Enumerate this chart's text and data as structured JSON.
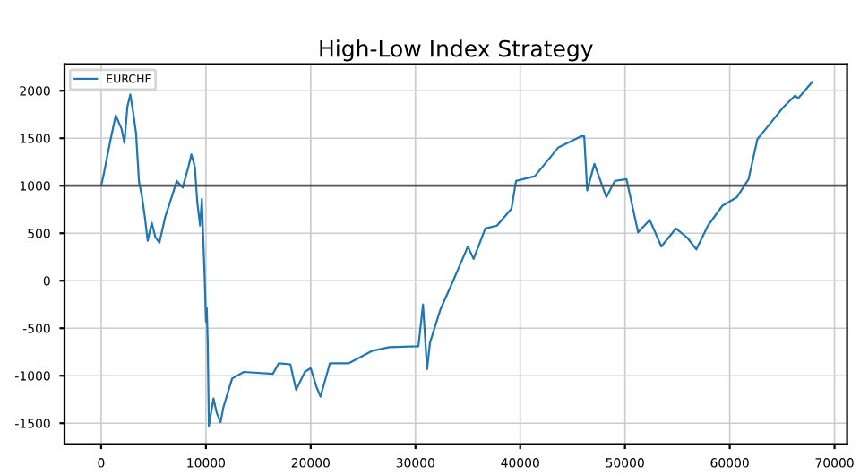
{
  "chart_data": {
    "type": "line",
    "title": "High-Low Index Strategy",
    "series": [
      {
        "name": "EURCHF",
        "color": "#1f77b4",
        "x": [
          0,
          280,
          830,
          1390,
          1940,
          2220,
          2500,
          2780,
          3060,
          3330,
          3610,
          3890,
          4170,
          4440,
          4830,
          5170,
          5560,
          6110,
          6670,
          7220,
          7780,
          8330,
          8610,
          8940,
          9170,
          9440,
          9610,
          9780,
          9890,
          10000,
          10080,
          10170,
          10280,
          10720,
          11030,
          11390,
          11670,
          12500,
          13610,
          16390,
          16940,
          18060,
          18610,
          19440,
          20000,
          20560,
          20940,
          21830,
          23610,
          25830,
          27500,
          30280,
          30720,
          31110,
          31390,
          32390,
          33600,
          35000,
          35550,
          36670,
          37780,
          39170,
          39600,
          41390,
          43610,
          45830,
          46110,
          46390,
          47080,
          48220,
          49030,
          50140,
          51250,
          52360,
          53470,
          54860,
          55970,
          56810,
          57920,
          59300,
          60690,
          61800,
          62640,
          63750,
          65140,
          66250,
          66530,
          67860
        ],
        "values": [
          1000,
          1140,
          1450,
          1740,
          1600,
          1450,
          1830,
          1960,
          1770,
          1550,
          1045,
          890,
          670,
          420,
          610,
          460,
          400,
          670,
          860,
          1050,
          980,
          1200,
          1330,
          1200,
          830,
          580,
          860,
          330,
          0,
          -430,
          -290,
          -650,
          -1530,
          -1240,
          -1390,
          -1490,
          -1330,
          -1030,
          -960,
          -980,
          -870,
          -880,
          -1150,
          -960,
          -920,
          -1120,
          -1220,
          -870,
          -870,
          -740,
          -700,
          -690,
          -250,
          -930,
          -650,
          -300,
          0,
          360,
          230,
          550,
          580,
          760,
          1050,
          1100,
          1400,
          1520,
          1520,
          950,
          1230,
          880,
          1050,
          1070,
          510,
          640,
          360,
          550,
          450,
          330,
          580,
          790,
          880,
          1070,
          1490,
          1640,
          1830,
          1950,
          1920,
          2090
        ]
      }
    ],
    "xlim": [
      -3500,
      71200
    ],
    "xticks": [
      0,
      10000,
      20000,
      30000,
      40000,
      50000,
      60000,
      70000
    ],
    "ylim": [
      -1720,
      2280
    ],
    "yticks": [
      -1500,
      -1000,
      -500,
      0,
      500,
      1000,
      1500,
      2000
    ],
    "ref_lines": [
      {
        "axis": "y",
        "value": 1000,
        "color": "#555555"
      }
    ],
    "grid": true,
    "legend": "top left",
    "marker": "none",
    "line_style": "solid"
  }
}
